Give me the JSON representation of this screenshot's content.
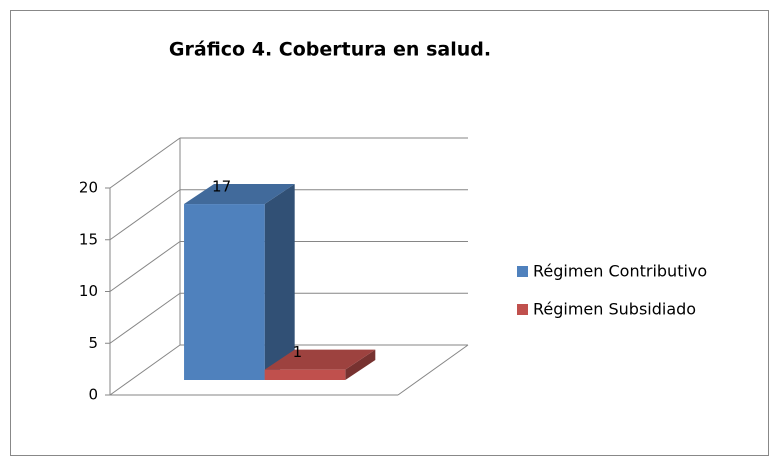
{
  "chart_data": {
    "type": "bar3d",
    "title": "Gráfico 4. Cobertura en salud.",
    "categories": [
      null
    ],
    "series": [
      {
        "name": "Régimen Contributivo",
        "color": "#4f81bd",
        "values": [
          17
        ]
      },
      {
        "name": "Régimen Subsidiado",
        "color": "#c0504d",
        "values": [
          1
        ]
      }
    ],
    "ylim": [
      0,
      20
    ],
    "yticks": [
      0,
      5,
      10,
      15,
      20
    ],
    "grid": true,
    "legend": "right"
  }
}
